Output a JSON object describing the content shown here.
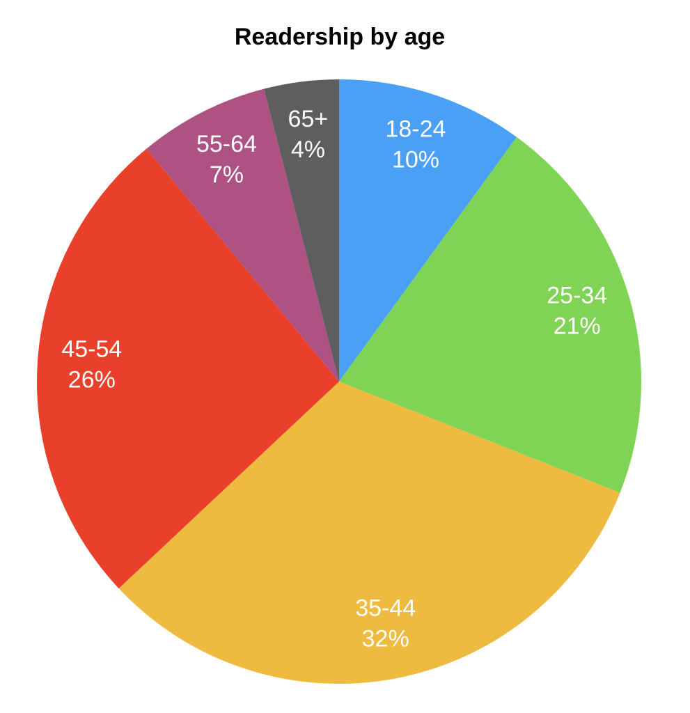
{
  "chart_data": {
    "type": "pie",
    "title": "Readership by age",
    "categories": [
      "18-24",
      "25-34",
      "35-44",
      "45-54",
      "55-64",
      "65+"
    ],
    "values": [
      10,
      21,
      32,
      26,
      7,
      4
    ],
    "value_labels": [
      "10%",
      "21%",
      "32%",
      "26%",
      "7%",
      "4%"
    ],
    "colors": [
      "#4aa0f5",
      "#80d455",
      "#eeba40",
      "#e8402a",
      "#ae5283",
      "#5e5e5e"
    ]
  }
}
